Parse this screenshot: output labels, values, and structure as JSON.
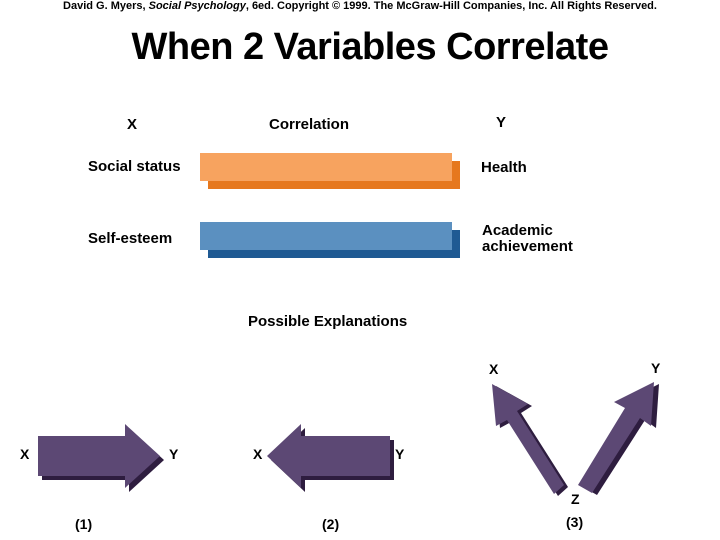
{
  "header": {
    "copyright_author": "David G. Myers, ",
    "copyright_book": "Social Psychology",
    "copyright_rest": ", 6ed. Copyright © 1999. The McGraw-Hill Companies, Inc. All Rights Reserved.",
    "title": "When 2 Variables Correlate"
  },
  "table": {
    "col_x": "X",
    "col_correlation": "Correlation",
    "col_y": "Y",
    "rows": [
      {
        "x": "Social status",
        "y": "Health",
        "bar_color": "#f7a35f",
        "shadow_color": "#e6781e"
      },
      {
        "x": "Self-esteem",
        "y": "Academic\nachievement",
        "bar_color": "#5b90c0",
        "shadow_color": "#1f5a93"
      }
    ]
  },
  "explanations": {
    "heading": "Possible Explanations",
    "arrow_color": "#5c4874",
    "arrow_shadow_color": "#2e1d3f",
    "items": [
      {
        "number": "(1)",
        "left_label": "X",
        "right_label": "Y"
      },
      {
        "number": "(2)",
        "left_label": "X",
        "right_label": "Y"
      },
      {
        "number": "(3)",
        "left_label": "X",
        "right_label": "Y",
        "bottom_label": "Z"
      }
    ]
  }
}
